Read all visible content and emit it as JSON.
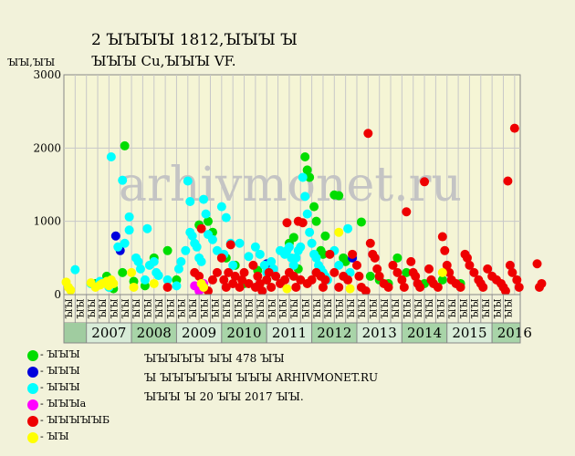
{
  "header": {
    "title_line1": "2 ꙐꙐꙐꙐ 1812,ꙐꙐꙐ Ꙑ",
    "title_line2": "ꙐꙐꙐ Cu,ꙐꙐꙐ VF."
  },
  "watermark": "arhivmonet.ru",
  "legend": [
    {
      "label": "- ꙐꙐꙐ",
      "color": "#00dd00"
    },
    {
      "label": "- ꙐꙐꙐ",
      "color": "#0000dd"
    },
    {
      "label": "- ꙐꙐꙐ",
      "color": "#00ffff"
    },
    {
      "label": "- ꙐꙐꙐa",
      "color": "#ff00ff"
    },
    {
      "label": "- ꙐꙐꙐꙐꙐБ",
      "color": "#ee0000"
    },
    {
      "label": "- ꙐꙐ",
      "color": "#ffff00"
    }
  ],
  "info": [
    "ꙐꙐꙐꙐꙐ ꙐꙐ 478 ꙐꙐ",
    "Ꙑ ꙐꙐꙐꙐꙐꙐ ꙐꙐꙐ ARHIVMONET.RU",
    "ꙐꙐꙐ Ꙑ 20 ꙐꙐ 2017 ꙐꙐ."
  ],
  "chart_data": {
    "type": "scatter",
    "title": "2 ꙐꙐꙐꙐ 1812,ꙐꙐꙐ Ꙑ ꙐꙐꙐ Cu,ꙐꙐꙐ VF.",
    "ylabel": "ꙐꙐ,ꙐꙐ",
    "ylim": [
      0,
      3000
    ],
    "yticks": [
      0,
      1000,
      2000,
      3000
    ],
    "grid": true,
    "years": [
      "2007",
      "2008",
      "2009",
      "2010",
      "2011",
      "2012",
      "2013",
      "2014",
      "2015",
      "2016"
    ],
    "quarter_labels": [
      "ꙐꙐ",
      "ꙐꙐ",
      "ꙐꙐ",
      "ꙐꙐ"
    ],
    "x_unit": "years since 2006-07-01",
    "series": [
      {
        "name": "- ꙐꙐꙐ",
        "color": "#00dd00",
        "points": [
          [
            0.7,
            150
          ],
          [
            0.95,
            250
          ],
          [
            1.1,
            80
          ],
          [
            1.3,
            300
          ],
          [
            1.35,
            2030
          ],
          [
            1.55,
            180
          ],
          [
            1.8,
            120
          ],
          [
            2.0,
            500
          ],
          [
            2.3,
            600
          ],
          [
            2.5,
            200
          ],
          [
            3.0,
            950
          ],
          [
            3.2,
            1000
          ],
          [
            3.3,
            850
          ],
          [
            3.6,
            500
          ],
          [
            3.8,
            400
          ],
          [
            4.0,
            150
          ],
          [
            4.3,
            330
          ],
          [
            4.5,
            200
          ],
          [
            5.0,
            700
          ],
          [
            5.1,
            780
          ],
          [
            5.2,
            350
          ],
          [
            5.35,
            1880
          ],
          [
            5.4,
            1700
          ],
          [
            5.45,
            1600
          ],
          [
            5.55,
            1200
          ],
          [
            5.6,
            1000
          ],
          [
            5.7,
            600
          ],
          [
            5.75,
            550
          ],
          [
            5.8,
            800
          ],
          [
            6.0,
            1360
          ],
          [
            6.1,
            1350
          ],
          [
            6.2,
            500
          ],
          [
            6.25,
            450
          ],
          [
            6.6,
            990
          ],
          [
            6.8,
            250
          ],
          [
            7.0,
            200
          ],
          [
            7.2,
            150
          ],
          [
            7.4,
            500
          ],
          [
            7.6,
            300
          ],
          [
            8.0,
            150
          ],
          [
            8.4,
            200
          ],
          [
            8.8,
            150
          ]
        ]
      },
      {
        "name": "- ꙐꙐꙐ",
        "color": "#0000dd",
        "points": [
          [
            1.15,
            800
          ],
          [
            1.25,
            600
          ],
          [
            4.5,
            420
          ],
          [
            6.4,
            500
          ]
        ]
      },
      {
        "name": "- ꙐꙐꙐ",
        "color": "#00ffff",
        "points": [
          [
            0.25,
            340
          ],
          [
            0.6,
            150
          ],
          [
            0.8,
            180
          ],
          [
            1.0,
            100
          ],
          [
            1.05,
            1880
          ],
          [
            1.2,
            650
          ],
          [
            1.3,
            1560
          ],
          [
            1.35,
            700
          ],
          [
            1.45,
            880
          ],
          [
            1.45,
            1060
          ],
          [
            1.6,
            500
          ],
          [
            1.65,
            450
          ],
          [
            1.7,
            350
          ],
          [
            1.8,
            200
          ],
          [
            1.85,
            900
          ],
          [
            1.9,
            400
          ],
          [
            2.0,
            450
          ],
          [
            2.05,
            300
          ],
          [
            2.1,
            260
          ],
          [
            2.3,
            200
          ],
          [
            2.5,
            120
          ],
          [
            2.55,
            350
          ],
          [
            2.6,
            450
          ],
          [
            2.7,
            600
          ],
          [
            2.75,
            1550
          ],
          [
            2.8,
            1270
          ],
          [
            2.8,
            850
          ],
          [
            2.85,
            800
          ],
          [
            2.9,
            700
          ],
          [
            2.95,
            650
          ],
          [
            3.0,
            500
          ],
          [
            3.05,
            450
          ],
          [
            3.1,
            1300
          ],
          [
            3.15,
            1100
          ],
          [
            3.2,
            820
          ],
          [
            3.3,
            750
          ],
          [
            3.4,
            600
          ],
          [
            3.5,
            1200
          ],
          [
            3.55,
            550
          ],
          [
            3.6,
            1050
          ],
          [
            3.7,
            700
          ],
          [
            3.75,
            400
          ],
          [
            3.9,
            700
          ],
          [
            4.1,
            520
          ],
          [
            4.25,
            650
          ],
          [
            4.35,
            550
          ],
          [
            4.45,
            400
          ],
          [
            4.5,
            300
          ],
          [
            4.6,
            450
          ],
          [
            4.65,
            350
          ],
          [
            4.7,
            250
          ],
          [
            4.8,
            600
          ],
          [
            4.9,
            550
          ],
          [
            4.95,
            600
          ],
          [
            5.0,
            650
          ],
          [
            5.05,
            500
          ],
          [
            5.1,
            400
          ],
          [
            5.15,
            500
          ],
          [
            5.2,
            600
          ],
          [
            5.25,
            650
          ],
          [
            5.3,
            1600
          ],
          [
            5.35,
            1340
          ],
          [
            5.4,
            1100
          ],
          [
            5.45,
            850
          ],
          [
            5.5,
            700
          ],
          [
            5.55,
            550
          ],
          [
            5.6,
            500
          ],
          [
            5.65,
            400
          ],
          [
            5.7,
            350
          ],
          [
            5.75,
            300
          ],
          [
            5.8,
            250
          ],
          [
            5.85,
            200
          ],
          [
            6.0,
            600
          ],
          [
            6.1,
            400
          ],
          [
            6.3,
            900
          ],
          [
            6.35,
            300
          ]
        ]
      },
      {
        "name": "- ꙐꙐꙐa",
        "color": "#ff00ff",
        "points": [
          [
            2.9,
            120
          ],
          [
            3.0,
            50
          ],
          [
            3.1,
            150
          ]
        ]
      },
      {
        "name": "- ꙐꙐꙐꙐꙐБ",
        "color": "#ee0000",
        "points": [
          [
            2.3,
            100
          ],
          [
            2.9,
            300
          ],
          [
            3.0,
            250
          ],
          [
            3.05,
            900
          ],
          [
            3.1,
            100
          ],
          [
            3.2,
            50
          ],
          [
            3.3,
            200
          ],
          [
            3.4,
            300
          ],
          [
            3.5,
            500
          ],
          [
            3.55,
            200
          ],
          [
            3.6,
            100
          ],
          [
            3.65,
            300
          ],
          [
            3.7,
            680
          ],
          [
            3.75,
            150
          ],
          [
            3.8,
            250
          ],
          [
            3.9,
            100
          ],
          [
            3.95,
            200
          ],
          [
            4.0,
            300
          ],
          [
            4.1,
            150
          ],
          [
            4.2,
            400
          ],
          [
            4.25,
            100
          ],
          [
            4.3,
            250
          ],
          [
            4.35,
            150
          ],
          [
            4.4,
            50
          ],
          [
            4.5,
            200
          ],
          [
            4.55,
            300
          ],
          [
            4.6,
            100
          ],
          [
            4.7,
            250
          ],
          [
            4.8,
            150
          ],
          [
            4.9,
            200
          ],
          [
            4.95,
            980
          ],
          [
            5.0,
            300
          ],
          [
            5.1,
            250
          ],
          [
            5.15,
            100
          ],
          [
            5.2,
            1000
          ],
          [
            5.25,
            200
          ],
          [
            5.3,
            980
          ],
          [
            5.4,
            150
          ],
          [
            5.5,
            200
          ],
          [
            5.6,
            300
          ],
          [
            5.7,
            250
          ],
          [
            5.75,
            100
          ],
          [
            5.8,
            200
          ],
          [
            5.9,
            550
          ],
          [
            6.0,
            300
          ],
          [
            6.1,
            100
          ],
          [
            6.2,
            250
          ],
          [
            6.3,
            200
          ],
          [
            6.4,
            550
          ],
          [
            6.5,
            400
          ],
          [
            6.55,
            250
          ],
          [
            6.6,
            100
          ],
          [
            6.7,
            50
          ],
          [
            6.75,
            2200
          ],
          [
            6.8,
            700
          ],
          [
            6.85,
            550
          ],
          [
            6.9,
            500
          ],
          [
            6.95,
            350
          ],
          [
            7.0,
            250
          ],
          [
            7.1,
            150
          ],
          [
            7.2,
            100
          ],
          [
            7.3,
            400
          ],
          [
            7.4,
            300
          ],
          [
            7.5,
            200
          ],
          [
            7.55,
            100
          ],
          [
            7.6,
            1130
          ],
          [
            7.7,
            450
          ],
          [
            7.75,
            300
          ],
          [
            7.8,
            250
          ],
          [
            7.85,
            150
          ],
          [
            7.9,
            100
          ],
          [
            8.0,
            1540
          ],
          [
            8.1,
            350
          ],
          [
            8.15,
            200
          ],
          [
            8.2,
            150
          ],
          [
            8.3,
            100
          ],
          [
            8.4,
            790
          ],
          [
            8.45,
            600
          ],
          [
            8.5,
            400
          ],
          [
            8.55,
            300
          ],
          [
            8.6,
            200
          ],
          [
            8.7,
            150
          ],
          [
            8.8,
            100
          ],
          [
            8.9,
            550
          ],
          [
            8.95,
            500
          ],
          [
            9.0,
            400
          ],
          [
            9.1,
            300
          ],
          [
            9.2,
            200
          ],
          [
            9.25,
            150
          ],
          [
            9.3,
            100
          ],
          [
            9.4,
            350
          ],
          [
            9.5,
            250
          ],
          [
            9.6,
            200
          ],
          [
            9.7,
            150
          ],
          [
            9.75,
            100
          ],
          [
            9.8,
            50
          ],
          [
            9.85,
            1550
          ],
          [
            9.9,
            400
          ],
          [
            9.95,
            300
          ],
          [
            10.0,
            2270
          ],
          [
            10.05,
            200
          ],
          [
            10.1,
            100
          ],
          [
            10.5,
            420
          ],
          [
            10.55,
            100
          ],
          [
            10.6,
            150
          ]
        ]
      },
      {
        "name": "- ꙐꙐ",
        "color": "#ffff00",
        "points": [
          [
            0.05,
            170
          ],
          [
            0.1,
            100
          ],
          [
            0.15,
            60
          ],
          [
            0.6,
            160
          ],
          [
            0.7,
            100
          ],
          [
            0.8,
            130
          ],
          [
            0.85,
            150
          ],
          [
            0.95,
            180
          ],
          [
            1.0,
            120
          ],
          [
            1.05,
            200
          ],
          [
            1.1,
            150
          ],
          [
            1.5,
            300
          ],
          [
            1.55,
            100
          ],
          [
            2.0,
            150
          ],
          [
            3.05,
            150
          ],
          [
            3.1,
            100
          ],
          [
            4.95,
            80
          ],
          [
            6.1,
            850
          ],
          [
            6.35,
            80
          ],
          [
            8.4,
            300
          ]
        ]
      }
    ]
  }
}
